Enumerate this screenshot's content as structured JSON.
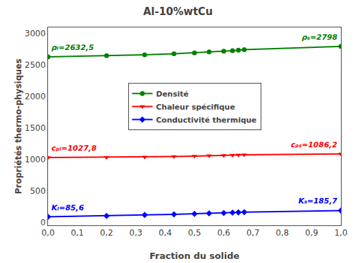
{
  "chart_data": {
    "type": "line",
    "title": "Al-10%wtCu",
    "x_label": "Fraction du solide",
    "y_label": "Propriétés thermo-physiques",
    "xlim": [
      0.0,
      1.0
    ],
    "ylim": [
      -50,
      3100
    ],
    "xticks": [
      {
        "value": 0.0,
        "label": "0,0"
      },
      {
        "value": 0.1,
        "label": "0,1"
      },
      {
        "value": 0.2,
        "label": "0,2"
      },
      {
        "value": 0.3,
        "label": "0,3"
      },
      {
        "value": 0.4,
        "label": "0,4"
      },
      {
        "value": 0.5,
        "label": "0,5"
      },
      {
        "value": 0.6,
        "label": "0,6"
      },
      {
        "value": 0.7,
        "label": "0,7"
      },
      {
        "value": 0.8,
        "label": "0,8"
      },
      {
        "value": 0.9,
        "label": "0,9"
      },
      {
        "value": 1.0,
        "label": "1,0"
      }
    ],
    "yticks": [
      0,
      500,
      1000,
      1500,
      2000,
      2500,
      3000
    ],
    "grid": false,
    "legend": "center",
    "series": [
      {
        "name": "Densité",
        "color": "#008000",
        "marker": "circle",
        "x": [
          0.0,
          0.2,
          0.33,
          0.43,
          0.5,
          0.55,
          0.6,
          0.63,
          0.65,
          0.67,
          1.0
        ],
        "values": [
          2632.5,
          2650,
          2665,
          2680,
          2695,
          2710,
          2720,
          2730,
          2738,
          2745,
          2798
        ]
      },
      {
        "name": "Chaleur spécifique",
        "color": "#ff0000",
        "marker": "triangle-down",
        "x": [
          0.0,
          0.2,
          0.33,
          0.43,
          0.5,
          0.55,
          0.6,
          0.63,
          0.65,
          0.67,
          1.0
        ],
        "values": [
          1027.8,
          1032,
          1037,
          1045,
          1052,
          1058,
          1063,
          1068,
          1071,
          1074,
          1086.2
        ]
      },
      {
        "name": "Conductivité thermique",
        "color": "#0000ff",
        "marker": "diamond",
        "x": [
          0.0,
          0.2,
          0.33,
          0.43,
          0.5,
          0.55,
          0.6,
          0.63,
          0.65,
          0.67,
          1.0
        ],
        "values": [
          85.6,
          100,
          115,
          125,
          133,
          140,
          147,
          152,
          156,
          160,
          185.7
        ]
      }
    ],
    "annotations": [
      {
        "text": "ρₗ=2632,5",
        "x": 0.0,
        "y": 2632.5,
        "color": "#008000"
      },
      {
        "text": "ρₛ=2798",
        "x": 1.0,
        "y": 2798,
        "color": "#008000"
      },
      {
        "text": "cₚₗ=1027,8",
        "x": 0.0,
        "y": 1027.8,
        "color": "#ff0000"
      },
      {
        "text": "cₚₛ=1086,2",
        "x": 1.0,
        "y": 1086.2,
        "color": "#ff0000"
      },
      {
        "text": "Kₗ=85,6",
        "x": 0.0,
        "y": 85.6,
        "color": "#0000ff"
      },
      {
        "text": "Kₛ=185,7",
        "x": 1.0,
        "y": 185.7,
        "color": "#0000ff"
      }
    ]
  }
}
